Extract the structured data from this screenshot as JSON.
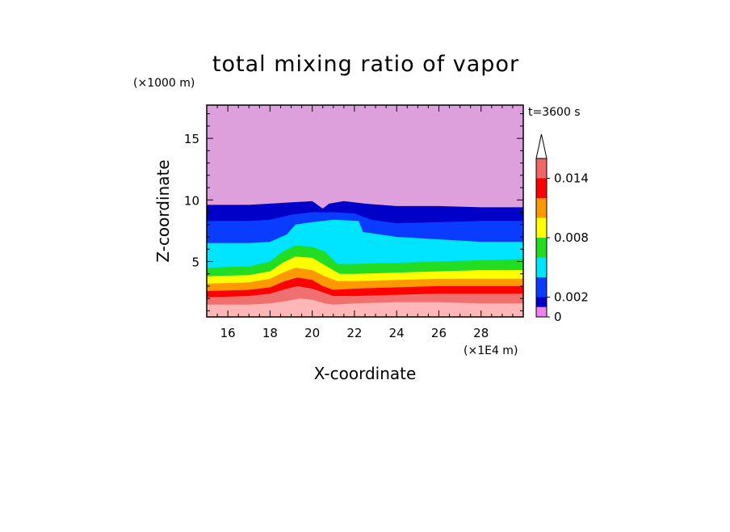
{
  "chart_data": {
    "type": "heatmap",
    "title": "total mixing ratio of vapor",
    "xlabel": "X-coordinate",
    "ylabel": "Z-coordinate",
    "x_units": "(×1E4 m)",
    "y_units": "(×1000 m)",
    "time_label": "t=3600 s",
    "xlim": [
      15,
      30
    ],
    "ylim": [
      0.5,
      17.7
    ],
    "x_ticks": [
      "16",
      "18",
      "20",
      "22",
      "24",
      "26",
      "28"
    ],
    "y_ticks": [
      "5",
      "10",
      "15"
    ],
    "colorbar": {
      "levels": [
        0,
        0.001,
        0.002,
        0.004,
        0.006,
        0.008,
        0.01,
        0.012,
        0.014,
        0.016
      ],
      "colors": [
        "#ee82ee",
        "#0000c8",
        "#0a3cff",
        "#00e5ff",
        "#22dd22",
        "#ffff00",
        "#ff9900",
        "#ff0000",
        "#ee6666",
        "#ffbbbb"
      ],
      "labels": [
        "0",
        "0.002",
        "0.008",
        "0.014"
      ],
      "top_arrow": true
    },
    "contours": [
      {
        "level": "above 0.016",
        "color": "#ffb6b6",
        "boundary": [
          [
            15,
            1.5
          ],
          [
            17,
            1.5
          ],
          [
            18,
            1.6
          ],
          [
            18.8,
            1.8
          ],
          [
            19.4,
            2.0
          ],
          [
            20,
            1.9
          ],
          [
            20.6,
            1.6
          ],
          [
            21,
            1.5
          ],
          [
            22,
            1.6
          ],
          [
            24,
            1.7
          ],
          [
            26,
            1.7
          ],
          [
            28,
            1.6
          ],
          [
            30,
            1.6
          ]
        ]
      },
      {
        "level": "0.014-0.016",
        "color": "#f07070",
        "boundary": [
          [
            15,
            2.1
          ],
          [
            17,
            2.2
          ],
          [
            18,
            2.4
          ],
          [
            18.8,
            2.8
          ],
          [
            19.3,
            3.0
          ],
          [
            20,
            2.8
          ],
          [
            20.5,
            2.5
          ],
          [
            21,
            2.2
          ],
          [
            22,
            2.2
          ],
          [
            24,
            2.3
          ],
          [
            26,
            2.4
          ],
          [
            28,
            2.4
          ],
          [
            30,
            2.4
          ]
        ]
      },
      {
        "level": "0.012-0.014",
        "color": "#ff0000",
        "boundary": [
          [
            15,
            2.6
          ],
          [
            17,
            2.7
          ],
          [
            18,
            2.9
          ],
          [
            18.7,
            3.4
          ],
          [
            19.3,
            3.7
          ],
          [
            20,
            3.5
          ],
          [
            20.5,
            3.0
          ],
          [
            21,
            2.7
          ],
          [
            22,
            2.8
          ],
          [
            24,
            2.9
          ],
          [
            26,
            3.0
          ],
          [
            28,
            3.0
          ],
          [
            30,
            3.0
          ]
        ]
      },
      {
        "level": "0.010-0.012",
        "color": "#ff9900",
        "boundary": [
          [
            15,
            3.2
          ],
          [
            17,
            3.3
          ],
          [
            18,
            3.6
          ],
          [
            18.6,
            4.1
          ],
          [
            19.2,
            4.5
          ],
          [
            20,
            4.3
          ],
          [
            20.6,
            3.8
          ],
          [
            21.2,
            3.4
          ],
          [
            22,
            3.4
          ],
          [
            24,
            3.5
          ],
          [
            26,
            3.6
          ],
          [
            28,
            3.6
          ],
          [
            30,
            3.6
          ]
        ]
      },
      {
        "level": "0.008-0.010",
        "color": "#ffff00",
        "boundary": [
          [
            15,
            3.8
          ],
          [
            17,
            3.9
          ],
          [
            18,
            4.2
          ],
          [
            18.6,
            4.9
          ],
          [
            19.2,
            5.4
          ],
          [
            20,
            5.3
          ],
          [
            20.6,
            4.7
          ],
          [
            21.3,
            4.0
          ],
          [
            22,
            4.0
          ],
          [
            24,
            4.1
          ],
          [
            26,
            4.2
          ],
          [
            28,
            4.3
          ],
          [
            30,
            4.3
          ]
        ]
      },
      {
        "level": "0.006-0.008",
        "color": "#22dd22",
        "boundary": [
          [
            15,
            4.5
          ],
          [
            17,
            4.6
          ],
          [
            18,
            5.0
          ],
          [
            18.6,
            5.8
          ],
          [
            19.2,
            6.3
          ],
          [
            20,
            6.2
          ],
          [
            20.6,
            5.8
          ],
          [
            21.2,
            4.8
          ],
          [
            22,
            4.8
          ],
          [
            24,
            4.9
          ],
          [
            26,
            5.0
          ],
          [
            28,
            5.1
          ],
          [
            30,
            5.2
          ]
        ]
      },
      {
        "level": "0.004-0.006",
        "color": "#00e5ff",
        "boundary": [
          [
            15,
            6.5
          ],
          [
            17,
            6.5
          ],
          [
            18,
            6.6
          ],
          [
            18.8,
            7.2
          ],
          [
            19.2,
            8.0
          ],
          [
            20,
            8.2
          ],
          [
            21,
            8.4
          ],
          [
            22.2,
            8.3
          ],
          [
            22.4,
            7.4
          ],
          [
            24,
            7.0
          ],
          [
            26,
            6.8
          ],
          [
            28,
            6.6
          ],
          [
            30,
            6.6
          ]
        ]
      },
      {
        "level": "0.002-0.004",
        "color": "#0a3cff",
        "boundary": [
          [
            15,
            8.3
          ],
          [
            17,
            8.3
          ],
          [
            18,
            8.4
          ],
          [
            19,
            8.8
          ],
          [
            20,
            9.0
          ],
          [
            21,
            9.0
          ],
          [
            22,
            8.9
          ],
          [
            22.8,
            8.4
          ],
          [
            24,
            8.1
          ],
          [
            26,
            8.2
          ],
          [
            28,
            8.3
          ],
          [
            30,
            8.3
          ]
        ]
      },
      {
        "level": "0.001-0.002",
        "color": "#0000c8",
        "boundary": [
          [
            15,
            9.6
          ],
          [
            17,
            9.6
          ],
          [
            18,
            9.7
          ],
          [
            19,
            9.8
          ],
          [
            20,
            9.9
          ],
          [
            20.5,
            9.3
          ],
          [
            20.8,
            9.7
          ],
          [
            21.5,
            9.9
          ],
          [
            22.5,
            9.7
          ],
          [
            24,
            9.5
          ],
          [
            26,
            9.5
          ],
          [
            28,
            9.4
          ],
          [
            30,
            9.4
          ]
        ]
      },
      {
        "level": "below 0.001",
        "color": "#dda0dd",
        "boundary": "top"
      }
    ]
  }
}
